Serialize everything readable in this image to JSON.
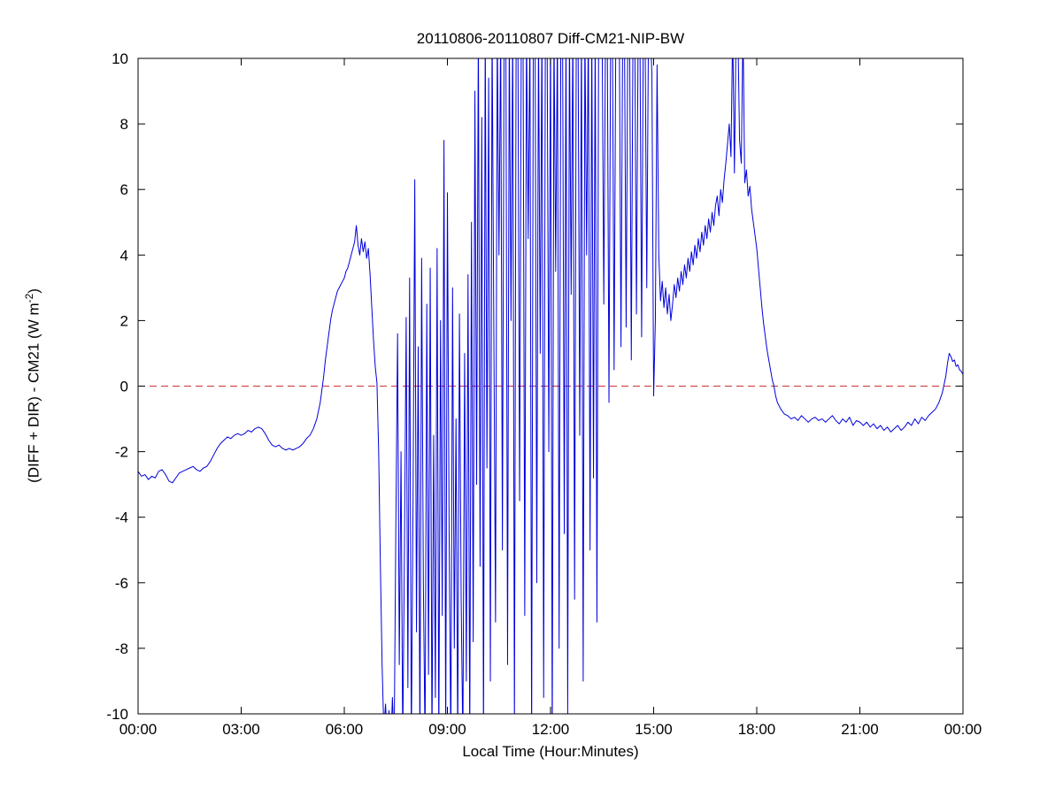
{
  "page": {
    "background": "#ffffff"
  },
  "chart_data": {
    "type": "line",
    "title": "20110806-20110807 Diff-CM21-NIP-BW",
    "xlabel": "Local Time (Hour:Minutes)",
    "ylabel_pre": "(DIFF + DIR) - CM21 (W m",
    "ylabel_sup": "-2",
    "ylabel_post": ")",
    "xlim": [
      0,
      24
    ],
    "ylim": [
      -10,
      10
    ],
    "grid": false,
    "legend": "none",
    "x_ticks": [
      {
        "value": 0,
        "label": "00:00"
      },
      {
        "value": 3,
        "label": "03:00"
      },
      {
        "value": 6,
        "label": "06:00"
      },
      {
        "value": 9,
        "label": "09:00"
      },
      {
        "value": 12,
        "label": "12:00"
      },
      {
        "value": 15,
        "label": "15:00"
      },
      {
        "value": 18,
        "label": "18:00"
      },
      {
        "value": 21,
        "label": "21:00"
      },
      {
        "value": 24,
        "label": "00:00"
      }
    ],
    "y_ticks": [
      {
        "value": -10,
        "label": "-10"
      },
      {
        "value": -8,
        "label": "-8"
      },
      {
        "value": -6,
        "label": "-6"
      },
      {
        "value": -4,
        "label": "-4"
      },
      {
        "value": -2,
        "label": "-2"
      },
      {
        "value": 0,
        "label": "0"
      },
      {
        "value": 2,
        "label": "2"
      },
      {
        "value": 4,
        "label": "4"
      },
      {
        "value": 6,
        "label": "6"
      },
      {
        "value": 8,
        "label": "8"
      },
      {
        "value": 10,
        "label": "10"
      }
    ],
    "reference_line": {
      "y": 0,
      "style": "dashed",
      "color": "#cc3333"
    },
    "axis_color": "#000000",
    "offscale_encoding": "values beyond the -10..10 axis range are clipped at the box edge (stored as +/-11)",
    "series": [
      {
        "name": "(DIFF + DIR) - CM21",
        "color": "#0000dd",
        "x_unit": "hours (local time)",
        "segments": [
          {
            "t0": 0.0,
            "dt": 0.1,
            "v": [
              -2.6,
              -2.75,
              -2.7,
              -2.85,
              -2.75,
              -2.8,
              -2.6,
              -2.55,
              -2.7,
              -2.9,
              -2.95,
              -2.8,
              -2.65,
              -2.6,
              -2.55,
              -2.5,
              -2.45,
              -2.55,
              -2.6,
              -2.5,
              -2.45,
              -2.3,
              -2.1,
              -1.9,
              -1.75,
              -1.65,
              -1.55,
              -1.6,
              -1.5,
              -1.45,
              -1.5,
              -1.45,
              -1.35,
              -1.4,
              -1.3,
              -1.25,
              -1.3,
              -1.45,
              -1.65,
              -1.8,
              -1.85,
              -1.8,
              -1.9,
              -1.95,
              -1.9,
              -1.95,
              -1.9,
              -1.85,
              -1.75,
              -1.6,
              -1.5,
              -1.3,
              -1.0
            ]
          },
          {
            "t0": 5.3,
            "dt": 0.05,
            "v": [
              -0.5,
              -0.1,
              0.3,
              0.8,
              1.2,
              1.6,
              2.0,
              2.3,
              2.5,
              2.7,
              2.9,
              3.0,
              3.1,
              3.2,
              3.3,
              3.5,
              3.6,
              3.8,
              4.0,
              4.2,
              4.4,
              4.9,
              4.3,
              4.0,
              4.5,
              4.1,
              4.4,
              3.9,
              4.2,
              3.4,
              2.4,
              1.4,
              0.6
            ]
          },
          {
            "t0": 6.95,
            "dt": 0.05,
            "v": [
              0.1,
              -2.0,
              -5.5,
              -8.5,
              -10.5,
              -9.7,
              -10.8,
              -9.9,
              -11,
              -9.5
            ]
          },
          {
            "t0": 7.45,
            "dt": 0.05,
            "v": [
              -11,
              -4.2,
              1.6,
              -8.5,
              -2.0,
              -11,
              -5.0,
              2.1,
              -9.2,
              3.3,
              -11,
              -3.5,
              6.3,
              -7.5,
              1.2,
              -11,
              3.9,
              -6.0,
              -11,
              2.5,
              -8.8,
              3.6,
              -11,
              -1.5,
              -9.5,
              4.2,
              -11,
              2.0,
              -7.0,
              7.5,
              -11,
              5.9,
              -4.5,
              -11,
              3.0,
              -8.0,
              -1.0,
              -11,
              2.2,
              -6.5,
              -11,
              1.0,
              -9.0,
              3.4,
              -11,
              5.0,
              -7.8,
              9.0,
              -3.0,
              11,
              -5.5,
              8.2,
              -11,
              11,
              -2.5,
              9.4,
              -9.0,
              11,
              1.8,
              -7.2,
              11,
              4.0
            ]
          },
          {
            "t0": 10.55,
            "dt": 0.05,
            "v": [
              11,
              -5.0,
              11,
              11,
              -8.5,
              11,
              2.0,
              11,
              -10.5,
              11,
              11,
              -3.5,
              11,
              11,
              -7.0,
              11,
              4.5,
              11,
              -11,
              11,
              11,
              -6.0,
              11,
              1.0,
              11,
              -9.5,
              11,
              11,
              -2.0,
              11,
              -11,
              11,
              3.5,
              11,
              -8.0,
              11,
              11,
              -4.5,
              11,
              -10.0,
              11,
              2.8,
              11,
              -6.5,
              11,
              11,
              -1.5,
              11,
              -9.0,
              11,
              4.0,
              11,
              -5.0,
              11,
              -2.8,
              11,
              -7.2,
              11
            ]
          },
          {
            "t0": 13.45,
            "dt": 0.05,
            "v": [
              11,
              11,
              2.5,
              11,
              11,
              -0.5,
              11,
              11,
              0.5,
              11,
              11,
              11,
              1.2,
              11,
              11,
              1.8,
              11,
              11,
              0.8,
              11,
              11,
              2.2,
              11,
              11,
              1.5,
              11,
              11,
              3.0,
              11,
              11,
              9.5
            ]
          },
          {
            "t0": 15.0,
            "dt": 0.05,
            "v": [
              -0.3,
              2.0,
              9.8,
              4.0,
              2.6,
              3.2,
              2.4,
              3.0,
              2.2,
              2.8,
              2.0,
              2.5,
              3.1,
              2.7,
              3.3,
              2.9,
              3.5,
              3.1,
              3.7,
              3.3,
              3.9,
              3.5,
              4.1,
              3.7,
              4.3,
              3.9,
              4.5,
              4.1,
              4.7,
              4.3,
              4.9,
              4.5,
              5.1,
              4.7,
              5.3,
              4.9,
              5.5,
              5.8,
              5.2,
              6.0,
              5.6,
              6.3,
              6.8,
              7.4,
              8.0,
              7.0,
              11,
              6.5,
              11,
              11,
              7.5
            ]
          },
          {
            "t0": 17.55,
            "dt": 0.05,
            "v": [
              6.8,
              11,
              6.2,
              6.6,
              5.8,
              6.1,
              5.4,
              5.0,
              4.6,
              4.2,
              3.6,
              3.0,
              2.4,
              1.9,
              1.5,
              1.1,
              0.8,
              0.5,
              0.2,
              0.0,
              -0.3,
              -0.5
            ]
          },
          {
            "t0": 18.7,
            "dt": 0.1,
            "v": [
              -0.7,
              -0.85,
              -0.9,
              -1.0,
              -0.95,
              -1.05,
              -0.9,
              -1.0,
              -1.1,
              -1.0,
              -0.95,
              -1.05,
              -1.0,
              -1.1,
              -1.0,
              -0.9,
              -1.05,
              -1.15,
              -1.0,
              -1.1,
              -0.95,
              -1.2,
              -1.05,
              -1.1,
              -1.2,
              -1.1,
              -1.25,
              -1.15,
              -1.3,
              -1.2,
              -1.35,
              -1.25,
              -1.4,
              -1.3,
              -1.2,
              -1.35,
              -1.25,
              -1.1,
              -1.2,
              -1.0,
              -1.15,
              -0.95,
              -1.05,
              -0.9
            ]
          },
          {
            "t0": 23.05,
            "dt": 0.05,
            "v": [
              -0.85,
              -0.8,
              -0.75,
              -0.7,
              -0.6,
              -0.5,
              -0.35,
              -0.2,
              0.05,
              0.3,
              0.7,
              1.0,
              0.9,
              0.75,
              0.8,
              0.6,
              0.65,
              0.5,
              0.45,
              0.35
            ]
          }
        ]
      }
    ]
  }
}
